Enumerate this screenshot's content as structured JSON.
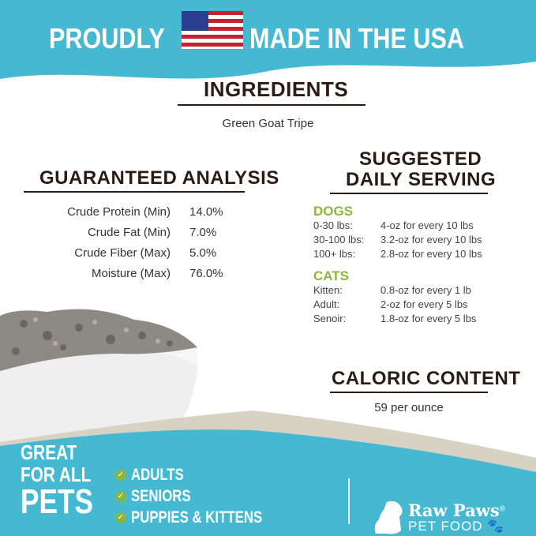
{
  "header": {
    "left": "PROUDLY",
    "right": "MADE IN THE USA",
    "flag_icon": "us-flag-icon"
  },
  "ingredients": {
    "title": "INGREDIENTS",
    "text": "Green Goat Tripe"
  },
  "analysis": {
    "title": "GUARANTEED ANALYSIS",
    "rows": [
      {
        "label": "Crude Protein (Min)",
        "value": "14.0%"
      },
      {
        "label": "Crude Fat (Min)",
        "value": "7.0%"
      },
      {
        "label": "Crude Fiber (Max)",
        "value": "5.0%"
      },
      {
        "label": "Moisture (Max)",
        "value": "76.0%"
      }
    ]
  },
  "serving": {
    "title1": "SUGGESTED",
    "title2": "DAILY SERVING",
    "dogs": {
      "title": "DOGS",
      "rows": [
        {
          "label": "0-30 lbs:",
          "value": "4-oz for every 10 lbs"
        },
        {
          "label": "30-100 lbs:",
          "value": "3.2-oz for every 10 lbs"
        },
        {
          "label": "100+ lbs:",
          "value": "2.8-oz for every 10 lbs"
        }
      ]
    },
    "cats": {
      "title": "CATS",
      "rows": [
        {
          "label": "Kitten:",
          "value": "0.8-oz for every 1 lb"
        },
        {
          "label": "Adult:",
          "value": "2-oz for every 5 lbs"
        },
        {
          "label": "Senoir:",
          "value": "1.8-oz for every 5 lbs"
        }
      ]
    }
  },
  "caloric": {
    "title": "CALORIC CONTENT",
    "text": "59 per ounce"
  },
  "footer": {
    "great": "GREAT",
    "for_all": "FOR ALL",
    "pets": "PETS",
    "items": [
      "ADULTS",
      "SENIORS",
      "PUPPIES & KITTENS"
    ],
    "brand": "Raw Paws",
    "brand_mark": "®",
    "brand_sub": "PET FOOD"
  },
  "colors": {
    "teal": "#45b9d1",
    "brown": "#2a1c14",
    "green": "#8cb53f",
    "beige": "#d8d2c4"
  }
}
